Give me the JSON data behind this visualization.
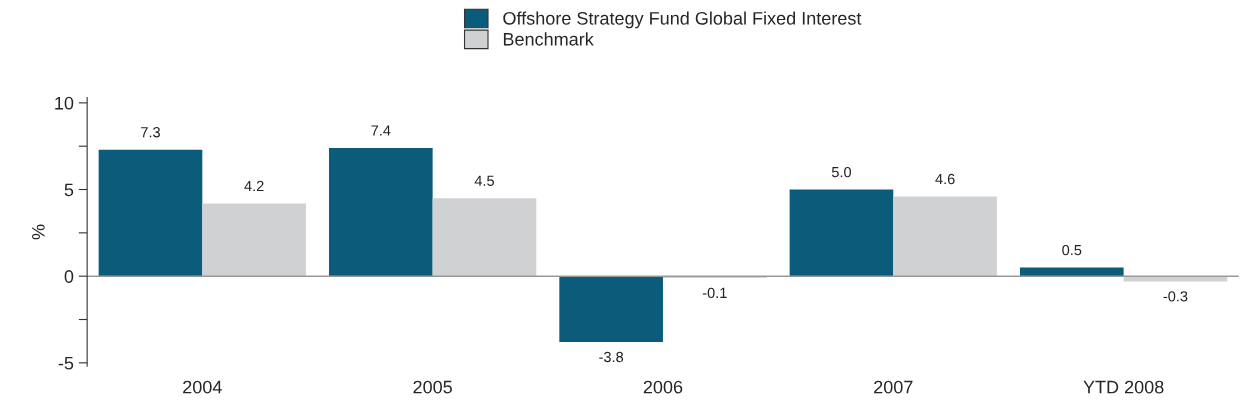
{
  "chart_data": {
    "type": "bar",
    "ylabel": "%",
    "categories": [
      "2004",
      "2005",
      "2006",
      "2007",
      "YTD 2008"
    ],
    "series": [
      {
        "name": "Offshore Strategy Fund Global Fixed Interest",
        "color": "#0b5c7b",
        "values": [
          7.3,
          7.4,
          -3.8,
          5.0,
          0.5
        ],
        "value_labels": [
          "7.3",
          "7.4",
          "-3.8",
          "5.0",
          "0.5"
        ]
      },
      {
        "name": "Benchmark",
        "color": "#d0d1d3",
        "values": [
          4.2,
          4.5,
          -0.1,
          4.6,
          -0.3
        ],
        "value_labels": [
          "4.2",
          "4.5",
          "-0.1",
          "4.6",
          "-0.3"
        ]
      }
    ],
    "ylim": [
      -5.2,
      10.3
    ],
    "yticks": [
      -5,
      {
        "value": -2.5,
        "label": null
      },
      0,
      {
        "value": 2.5,
        "label": null
      },
      5,
      {
        "value": 7.5,
        "label": null
      },
      10
    ],
    "ref_lines": [
      {
        "axis": "y",
        "value": 0,
        "color": "#999999"
      }
    ],
    "legend": "top",
    "grid": false
  }
}
